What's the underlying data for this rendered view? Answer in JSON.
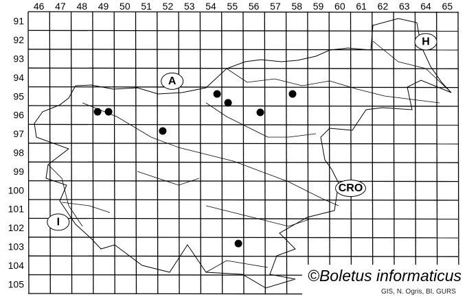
{
  "map": {
    "columns": [
      "46",
      "47",
      "48",
      "49",
      "50",
      "51",
      "52",
      "53",
      "54",
      "55",
      "56",
      "57",
      "58",
      "59",
      "60",
      "61",
      "62",
      "63",
      "64",
      "65"
    ],
    "rows": [
      "91",
      "92",
      "93",
      "94",
      "95",
      "96",
      "97",
      "98",
      "99",
      "100",
      "101",
      "102",
      "103",
      "104",
      "105"
    ],
    "countries": [
      {
        "id": "austria",
        "label": "A",
        "col": 52.7,
        "row": 94.7
      },
      {
        "id": "hungary",
        "label": "H",
        "col": 64.5,
        "row": 92.6
      },
      {
        "id": "croatia",
        "label": "CRO",
        "col": 61.0,
        "row": 100.4
      },
      {
        "id": "italy",
        "label": "I",
        "col": 47.4,
        "row": 102.2
      }
    ],
    "records": [
      {
        "col": 49.23,
        "row": 96.33
      },
      {
        "col": 49.74,
        "row": 96.33
      },
      {
        "col": 52.26,
        "row": 97.35
      },
      {
        "col": 54.79,
        "row": 95.38
      },
      {
        "col": 55.3,
        "row": 95.85
      },
      {
        "col": 56.8,
        "row": 96.36
      },
      {
        "col": 58.3,
        "row": 95.38
      },
      {
        "col": 55.78,
        "row": 103.34
      }
    ],
    "record_color": "#000000",
    "watermark": "©Boletus informaticus",
    "credit": "GIS, N. Ogris, BI, GURS"
  }
}
